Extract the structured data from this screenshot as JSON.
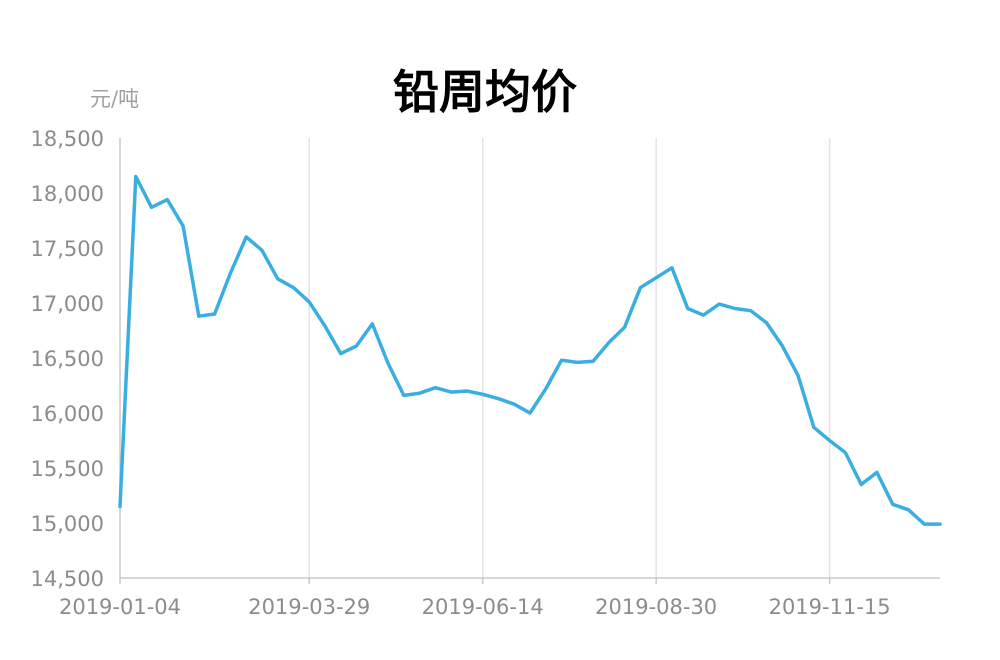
{
  "chart_data": {
    "type": "line",
    "title": "铅周均价",
    "ylabel": "元/吨",
    "xlabel": "",
    "ylim": [
      14500,
      18500
    ],
    "yticks": [
      "14,500",
      "15,000",
      "15,500",
      "16,000",
      "16,500",
      "17,000",
      "17,500",
      "18,000",
      "18,500"
    ],
    "xticks": [
      "2019-01-04",
      "2019-03-29",
      "2019-06-14",
      "2019-08-30",
      "2019-11-15"
    ],
    "grid": "vertical",
    "legend": "none",
    "color": "#3aaee0",
    "series": [
      {
        "x": [
          "2019-01-04",
          "2019-01-11",
          "2019-01-18",
          "2019-01-25",
          "2019-02-01",
          "2019-02-08",
          "2019-02-15",
          "2019-02-22",
          "2019-03-01",
          "2019-03-08",
          "2019-03-15",
          "2019-03-22",
          "2019-03-29",
          "2019-04-05",
          "2019-04-12",
          "2019-04-19",
          "2019-04-26",
          "2019-05-03",
          "2019-05-10",
          "2019-05-17",
          "2019-05-24",
          "2019-05-31",
          "2019-06-07",
          "2019-06-14",
          "2019-06-21",
          "2019-06-28",
          "2019-07-05",
          "2019-07-12",
          "2019-07-19",
          "2019-07-26",
          "2019-08-02",
          "2019-08-09",
          "2019-08-16",
          "2019-08-23",
          "2019-08-30",
          "2019-09-06",
          "2019-09-13",
          "2019-09-20",
          "2019-09-27",
          "2019-10-04",
          "2019-10-11",
          "2019-10-18",
          "2019-10-25",
          "2019-11-01",
          "2019-11-08",
          "2019-11-15",
          "2019-11-22",
          "2019-11-29",
          "2019-12-06",
          "2019-12-13",
          "2019-12-20",
          "2019-12-27",
          "2020-01-03"
        ],
        "values": [
          15150,
          18150,
          17870,
          17940,
          17700,
          16880,
          16900,
          17270,
          17600,
          17480,
          17220,
          17140,
          17010,
          16790,
          16540,
          16610,
          16810,
          16450,
          16160,
          16180,
          16230,
          16190,
          16200,
          16170,
          16130,
          16080,
          16000,
          16220,
          16480,
          16460,
          16470,
          16640,
          16780,
          17140,
          17230,
          17320,
          16950,
          16890,
          16990,
          16950,
          16930,
          16820,
          16610,
          16340,
          15870,
          15750,
          15640,
          15350,
          15460,
          15170,
          15120,
          14990,
          14990
        ]
      }
    ]
  }
}
